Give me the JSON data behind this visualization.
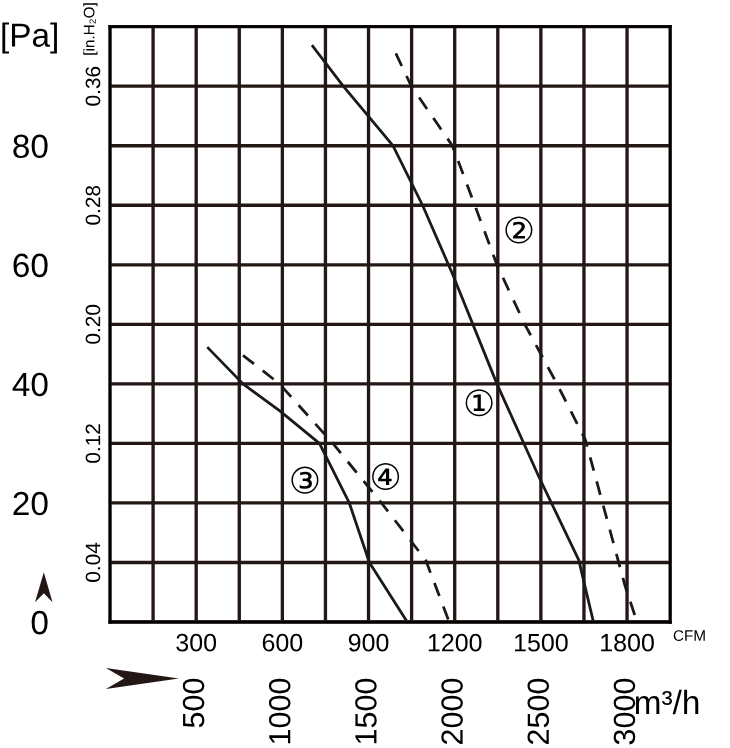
{
  "chart_data": {
    "type": "line",
    "xlabel": "CFM",
    "ylabel": "[Pa]",
    "y2label": "[in.H₂O]",
    "x2label": "m³/h",
    "xlim": [
      0,
      1950
    ],
    "ylim": [
      0,
      100
    ],
    "y2lim": [
      0,
      0.4
    ],
    "x2lim": [
      0,
      3250
    ],
    "xticks": [
      {
        "value": 150,
        "label": null
      },
      300,
      {
        "value": 450,
        "label": null
      },
      600,
      {
        "value": 750,
        "label": null
      },
      900,
      {
        "value": 1050,
        "label": null
      },
      1200,
      {
        "value": 1350,
        "label": null
      },
      1500,
      {
        "value": 1650,
        "label": null
      },
      1800
    ],
    "yticks": [
      0,
      20,
      40,
      60,
      80
    ],
    "y2ticks": [
      0.04,
      0.12,
      {
        "value": 0.2,
        "label": "0.20"
      },
      0.28,
      0.36
    ],
    "x2ticks": [
      500,
      1000,
      1500,
      2000,
      2500,
      3000
    ],
    "grid": true,
    "marker": "none",
    "series": [
      {
        "color": "#1a1a1a",
        "line_style": "solid",
        "x": [
          706,
          812,
          985,
          1088,
          1192,
          1347,
          1493,
          1632,
          1683
        ],
        "values": [
          96.7,
          90,
          80,
          70,
          58.5,
          40,
          24.4,
          10.4,
          0
        ]
      },
      {
        "color": "#1a1a1a",
        "line_style": "dashed",
        "x": [
          995,
          1049,
          1192,
          1270,
          1347,
          1444,
          1556,
          1655,
          1794,
          1835
        ],
        "values": [
          95.5,
          90,
          80,
          70,
          60,
          50,
          40,
          30.6,
          5.9,
          0
        ]
      },
      {
        "color": "#1a1a1a",
        "line_style": "solid",
        "x": [
          342,
          463,
          590,
          729,
          833,
          903,
          1035
        ],
        "values": [
          46,
          40,
          35.5,
          30,
          20,
          10,
          0
        ]
      },
      {
        "color": "#1a1a1a",
        "line_style": "dashed",
        "x": [
          463,
          590,
          776,
          945,
          1099,
          1181
        ],
        "values": [
          44.8,
          40,
          30,
          20,
          10.4,
          0
        ]
      }
    ],
    "annotations": [
      "①",
      "②",
      "③",
      "④"
    ]
  }
}
